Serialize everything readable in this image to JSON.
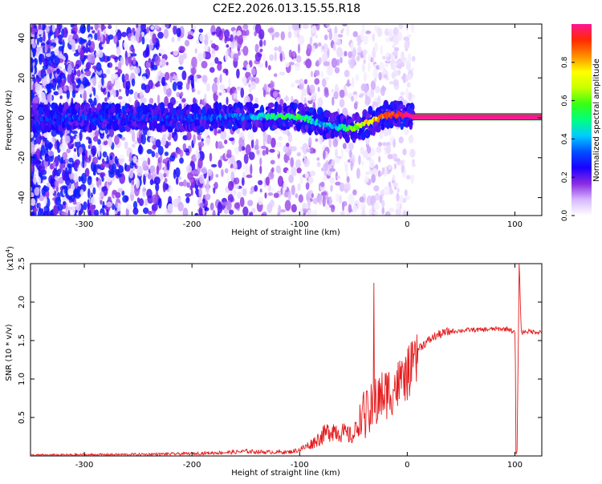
{
  "page": {
    "title": "C2E2.2026.013.15.55.R18"
  },
  "chart_data": [
    {
      "type": "heatmap",
      "xlabel": "Height of straight line (km)",
      "ylabel": "Frequency (Hz)",
      "xlim": [
        -350,
        125
      ],
      "ylim": [
        -49,
        47
      ],
      "xticks": [
        -300,
        -200,
        -100,
        0,
        100
      ],
      "yticks": [
        -40,
        -20,
        0,
        20,
        40
      ],
      "colorbar": {
        "label": "Normalized spectral amplitude",
        "range": [
          0,
          1
        ],
        "ticks": [
          0.0,
          0.2,
          0.4,
          0.6,
          0.8
        ],
        "stops": [
          "#ffffff",
          "#d6b8ff",
          "#8a2be2",
          "#1a00ff",
          "#0050ff",
          "#00ccff",
          "#00ff80",
          "#39ff14",
          "#c8ff00",
          "#ffff00",
          "#ff8c00",
          "#ff2a00",
          "#ff1493"
        ]
      },
      "ridge": {
        "x": [
          -350,
          -300,
          -250,
          -200,
          -150,
          -120,
          -100,
          -90,
          -80,
          -70,
          -60,
          -50,
          -40,
          -30,
          -20,
          -10,
          0,
          5,
          125
        ],
        "frequency": [
          0,
          0,
          0,
          0,
          0.5,
          0.8,
          0.5,
          -1,
          -3,
          -4,
          -5,
          -5,
          -3,
          -1,
          1,
          1.5,
          1.5,
          0.5,
          0.5
        ],
        "amplitude": [
          0.25,
          0.3,
          0.25,
          0.3,
          0.35,
          0.5,
          0.55,
          0.45,
          0.4,
          0.4,
          0.5,
          0.6,
          0.7,
          0.8,
          0.9,
          0.95,
          1.0,
          1.0,
          1.0
        ]
      }
    },
    {
      "type": "line",
      "xlabel": "Height of straight line (km)",
      "ylabel": "SNR (10 * v/v)",
      "y_multiplier": "(x10",
      "y_multiplier_exp": "4",
      "y_multiplier_close": ")",
      "xlim": [
        -350,
        125
      ],
      "ylim": [
        0,
        2.5
      ],
      "xticks": [
        -300,
        -200,
        -100,
        0,
        100
      ],
      "yticks": [
        0.5,
        1.0,
        1.5,
        2.0,
        2.5
      ],
      "series": [
        {
          "color": "#e41a1c",
          "x": [
            -350,
            -300,
            -250,
            -200,
            -180,
            -160,
            -150,
            -130,
            -110,
            -100,
            -90,
            -80,
            -70,
            -60,
            -50,
            -45,
            -40,
            -35,
            -30,
            -25,
            -20,
            -15,
            -10,
            -5,
            0,
            5,
            10,
            15,
            20,
            25,
            30,
            35,
            40,
            50,
            60,
            70,
            80,
            90,
            95,
            100,
            102,
            104,
            106,
            110,
            125
          ],
          "y": [
            0.01,
            0.015,
            0.02,
            0.03,
            0.04,
            0.05,
            0.06,
            0.05,
            0.05,
            0.08,
            0.15,
            0.25,
            0.35,
            0.3,
            0.25,
            0.45,
            0.6,
            0.7,
            0.8,
            0.9,
            0.95,
            1.0,
            1.05,
            1.1,
            1.2,
            1.3,
            1.4,
            1.45,
            1.5,
            1.55,
            1.58,
            1.6,
            1.62,
            1.63,
            1.64,
            1.64,
            1.65,
            1.65,
            1.65,
            1.6,
            0.05,
            2.5,
            1.6,
            1.62,
            1.61
          ]
        }
      ]
    }
  ]
}
